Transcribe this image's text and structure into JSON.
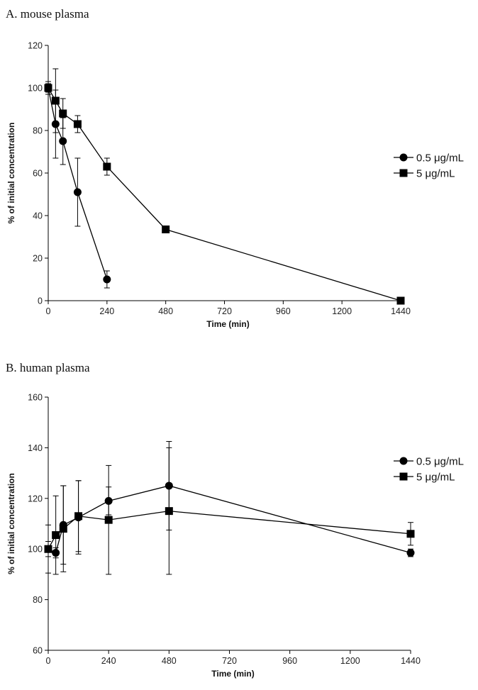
{
  "panels": {
    "a": {
      "heading": "A. mouse plasma"
    },
    "b": {
      "heading": "B. human plasma"
    }
  },
  "chart_data": [
    {
      "type": "line",
      "title": "A. mouse plasma",
      "xlabel": "Time (min)",
      "ylabel": "% of initial concentration",
      "xlim": [
        0,
        1440
      ],
      "ylim": [
        0,
        120
      ],
      "xticks": [
        0,
        240,
        480,
        720,
        960,
        1200,
        1440
      ],
      "yticks": [
        0,
        20,
        40,
        60,
        80,
        100,
        120
      ],
      "grid": false,
      "legend_position": "right",
      "series": [
        {
          "name": "0.5 μg/mL",
          "marker": "circle",
          "x": [
            0,
            30,
            60,
            120,
            240
          ],
          "y": [
            100,
            83,
            75,
            51,
            10
          ],
          "error": [
            2,
            16,
            11,
            16,
            4
          ]
        },
        {
          "name": "5 μg/mL",
          "marker": "square",
          "x": [
            0,
            30,
            60,
            120,
            240,
            480,
            1440
          ],
          "y": [
            100,
            94,
            88,
            83,
            63,
            33.5,
            0
          ],
          "error": [
            3,
            15,
            7,
            4,
            4,
            1,
            0
          ]
        }
      ]
    },
    {
      "type": "line",
      "title": "B. human plasma",
      "xlabel": "Time (min)",
      "ylabel": "% of initial concentration",
      "xlim": [
        0,
        1440
      ],
      "ylim": [
        60,
        160
      ],
      "xticks": [
        0,
        240,
        480,
        720,
        960,
        1200,
        1440
      ],
      "yticks": [
        60,
        80,
        100,
        120,
        140,
        160
      ],
      "grid": false,
      "legend_position": "right",
      "series": [
        {
          "name": "0.5 μg/mL",
          "marker": "circle",
          "x": [
            0,
            30,
            60,
            120,
            240,
            480,
            1440
          ],
          "y": [
            100,
            98.5,
            109.5,
            112.5,
            119,
            125,
            98.5
          ],
          "error": [
            3,
            2,
            15.5,
            14.5,
            5.5,
            17.5,
            1.5
          ]
        },
        {
          "name": "5 μg/mL",
          "marker": "square",
          "x": [
            0,
            30,
            60,
            120,
            240,
            480,
            1440
          ],
          "y": [
            100,
            105.5,
            108,
            113,
            111.5,
            115,
            106
          ],
          "error": [
            9.5,
            15.5,
            17,
            14,
            21.5,
            25,
            4.5
          ]
        }
      ]
    }
  ]
}
